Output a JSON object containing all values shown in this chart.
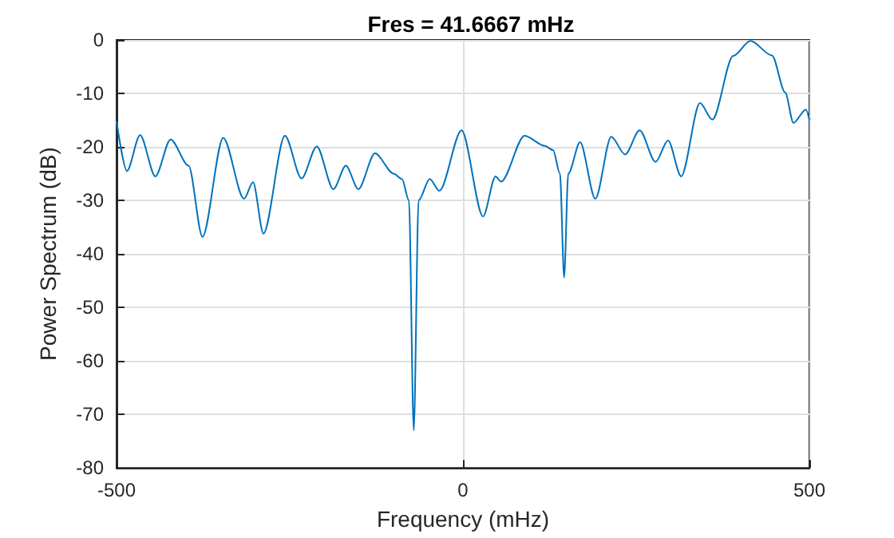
{
  "chart_data": {
    "type": "line",
    "title": "Fres = 41.6667 mHz",
    "xlabel": "Frequency (mHz)",
    "ylabel": "Power Spectrum (dB)",
    "x": [
      -500,
      -485,
      -466,
      -444,
      -422,
      -396,
      -376,
      -346,
      -316,
      -303,
      -288,
      -257,
      -233,
      -211,
      -187,
      -169,
      -151,
      -127,
      -100,
      -88,
      -78,
      -71,
      -64,
      -48,
      -34,
      -2,
      29,
      47,
      55,
      89,
      118,
      130,
      140,
      146,
      152,
      169,
      191,
      214,
      234,
      255,
      278,
      296,
      315,
      342,
      360,
      390,
      415,
      446,
      465,
      477,
      495,
      500
    ],
    "series": [
      {
        "color": "#0072bd",
        "values": [
          -15.2,
          -24.5,
          -17.8,
          -25.5,
          -18.6,
          -23.5,
          -36.8,
          -18.3,
          -29.7,
          -26.6,
          -36.2,
          -17.9,
          -25.9,
          -19.9,
          -27.9,
          -23.5,
          -27.9,
          -21.2,
          -25,
          -26,
          -30,
          -73,
          -30,
          -26,
          -28.2,
          -16.9,
          -33,
          -25.5,
          -26.5,
          -17.9,
          -19.8,
          -20.6,
          -25,
          -44.4,
          -25,
          -19.1,
          -29.7,
          -18.1,
          -21.4,
          -16.9,
          -22.8,
          -18.8,
          -25.5,
          -11.8,
          -14.9,
          -3,
          -0.2,
          -2.9,
          -9.8,
          -15.5,
          -13,
          -15
        ]
      }
    ],
    "xlim": [
      -500,
      500
    ],
    "xticks": [
      -500,
      0,
      500
    ],
    "ylim": [
      -80,
      0
    ],
    "yticks": [
      -80,
      -70,
      -60,
      -50,
      -40,
      -30,
      -20,
      -10,
      0
    ],
    "grid": true,
    "marker": "none",
    "line_style": "solid"
  }
}
